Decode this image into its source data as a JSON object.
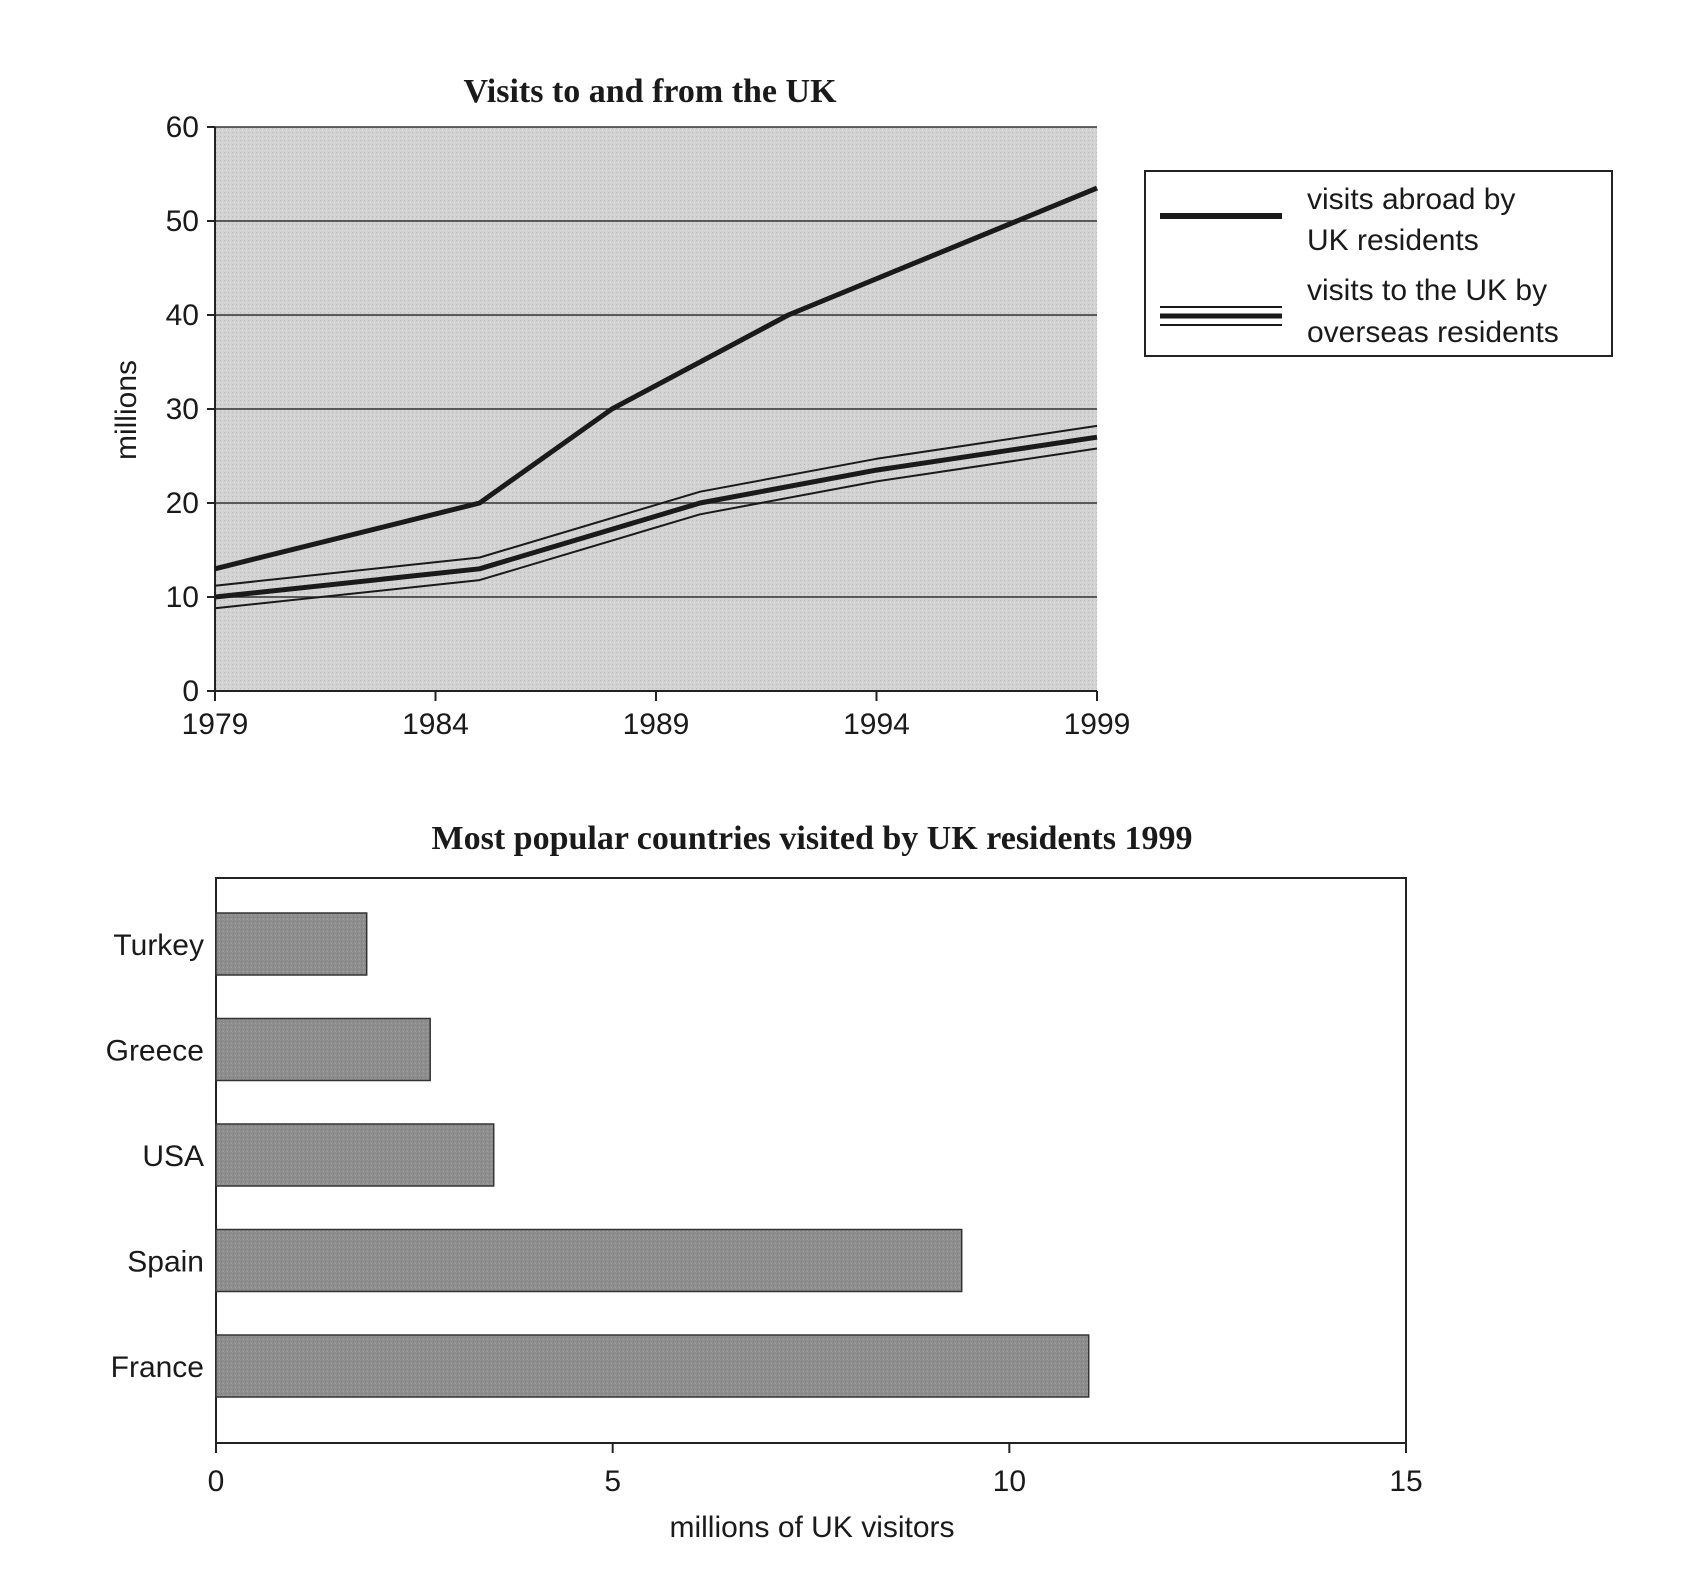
{
  "chart_data": [
    {
      "type": "line",
      "title": "Visits to and from the UK",
      "xlabel": "",
      "ylabel": "millions",
      "xlim": [
        1979,
        1999
      ],
      "ylim": [
        0,
        60
      ],
      "xticks": [
        "1979",
        "1984",
        "1989",
        "1994",
        "1999"
      ],
      "yticks": [
        "0",
        "10",
        "20",
        "30",
        "40",
        "50",
        "60"
      ],
      "grid": true,
      "legend_position": "right",
      "series": [
        {
          "name": "visits abroad by UK residents",
          "style": "solid-thick",
          "x": [
            1979,
            1985,
            1988,
            1992,
            1999
          ],
          "y": [
            13,
            20,
            30,
            40,
            53.5
          ]
        },
        {
          "name": "visits to the UK by overseas residents",
          "style": "triple-line",
          "x": [
            1979,
            1985,
            1990,
            1994,
            1999
          ],
          "y": [
            10,
            13,
            20,
            23.5,
            27
          ]
        }
      ],
      "legend": [
        {
          "line1": "visits abroad by",
          "line2": "UK residents"
        },
        {
          "line1": "visits to the UK by",
          "line2": "overseas residents"
        }
      ]
    },
    {
      "type": "bar",
      "orientation": "horizontal",
      "title": "Most popular countries visited by UK residents 1999",
      "xlabel": "millions of UK visitors",
      "ylabel": "",
      "xlim": [
        0,
        15
      ],
      "xticks": [
        "0",
        "5",
        "10",
        "15"
      ],
      "categories": [
        "Turkey",
        "Greece",
        "USA",
        "Spain",
        "France"
      ],
      "values": [
        1.9,
        2.7,
        3.5,
        9.4,
        11.0
      ],
      "grid": false
    }
  ]
}
